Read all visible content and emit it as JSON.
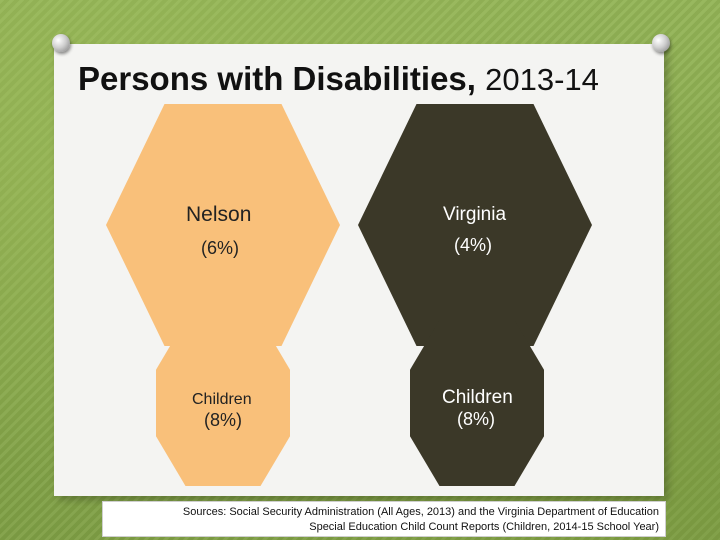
{
  "title": {
    "main": "Persons with Disabilities,",
    "years": "2013-14"
  },
  "nelson": {
    "name": "Nelson",
    "percent": "(6%)",
    "children_label": "Children",
    "children_percent": "(8%)"
  },
  "virginia": {
    "name": "Virginia",
    "percent": "(4%)",
    "children_label": "Children",
    "children_percent": "(8%)"
  },
  "sources": {
    "line1": "Sources: Social Security Administration (All Ages, 2013) and the Virginia Department of Education",
    "line2": "Special Education Child Count Reports (Children, 2014-15 School Year)"
  },
  "colors": {
    "light_hex": "#f9c07a",
    "dark_hex": "#3b3828",
    "background": "#86a64a"
  }
}
